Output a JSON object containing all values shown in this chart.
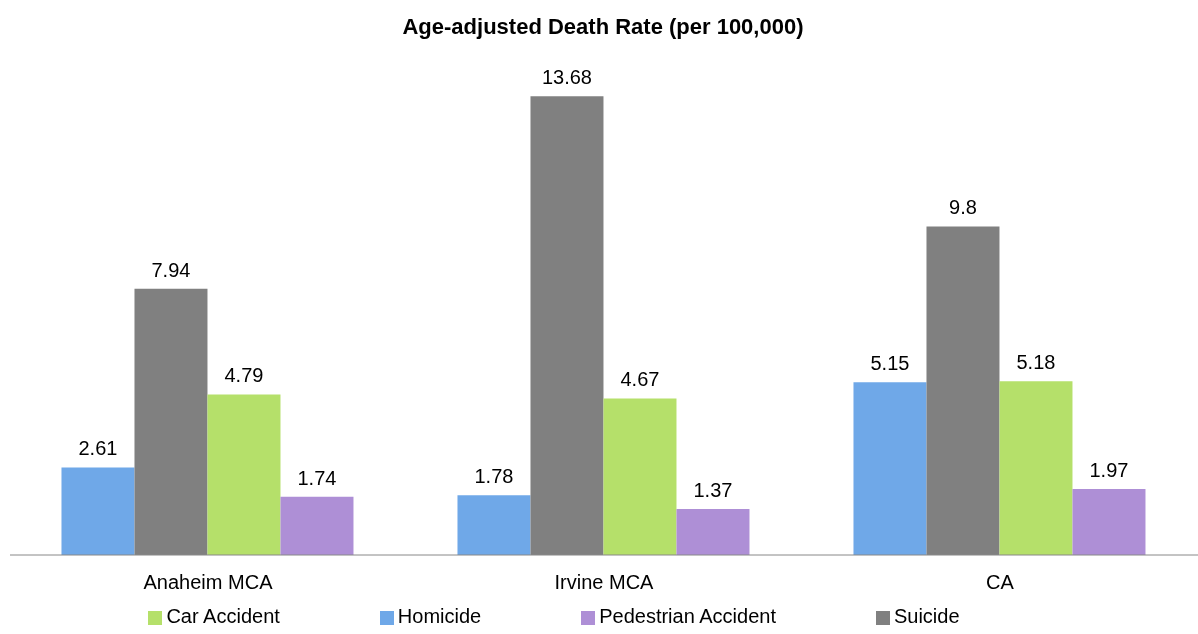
{
  "chart_data": {
    "type": "bar",
    "title": "Age-adjusted Death Rate (per 100,000)",
    "categories": [
      "Anaheim MCA",
      "Irvine MCA",
      "CA"
    ],
    "series": [
      {
        "name": "Homicide",
        "color": "#6fa8e8",
        "values": [
          2.61,
          1.78,
          5.15
        ]
      },
      {
        "name": "Suicide",
        "color": "#808080",
        "values": [
          7.94,
          13.68,
          9.8
        ]
      },
      {
        "name": "Car Accident",
        "color": "#b5e06a",
        "values": [
          4.79,
          4.67,
          5.18
        ]
      },
      {
        "name": "Pedestrian Accident",
        "color": "#ae8fd6",
        "values": [
          1.74,
          1.37,
          1.97
        ]
      }
    ],
    "data_labels": true,
    "grid": false,
    "legend": "bottom"
  }
}
